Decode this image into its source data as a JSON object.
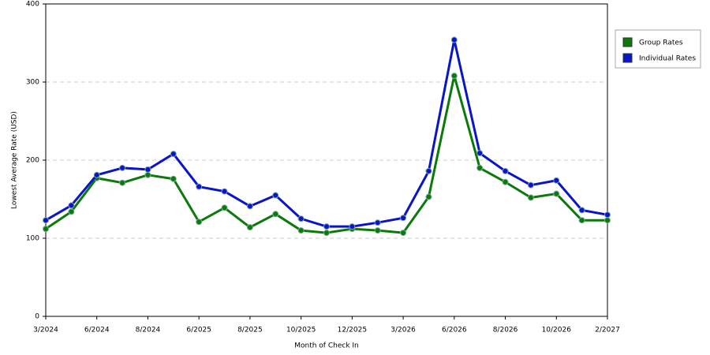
{
  "chart_data": {
    "type": "line",
    "x_label": "Month of Check In",
    "y_label": "Lowest Average Rate (USD)",
    "categories": [
      "3/2024",
      null,
      "6/2024",
      null,
      "8/2024",
      null,
      "6/2025",
      null,
      "8/2025",
      null,
      "10/2025",
      null,
      "12/2025",
      null,
      "3/2026",
      null,
      "6/2026",
      null,
      "8/2026",
      null,
      "10/2026",
      null,
      "2/2027"
    ],
    "series": [
      {
        "name": "Group Rates",
        "color": "#0b7a0b",
        "values": [
          112,
          134,
          177,
          171,
          181,
          176,
          121,
          139,
          114,
          131,
          110,
          107,
          112,
          110,
          107,
          153,
          308,
          190,
          172,
          152,
          157,
          123,
          123
        ]
      },
      {
        "name": "Individual Rates",
        "color": "#0a14c8",
        "values": [
          123,
          142,
          181,
          190,
          188,
          208,
          166,
          160,
          141,
          155,
          125,
          115,
          115,
          120,
          126,
          186,
          354,
          209,
          186,
          168,
          174,
          136,
          130
        ]
      }
    ],
    "ylim": [
      0,
      400
    ],
    "yticks": [
      0,
      100,
      200,
      300,
      400
    ],
    "grid": true,
    "legend": "right"
  }
}
